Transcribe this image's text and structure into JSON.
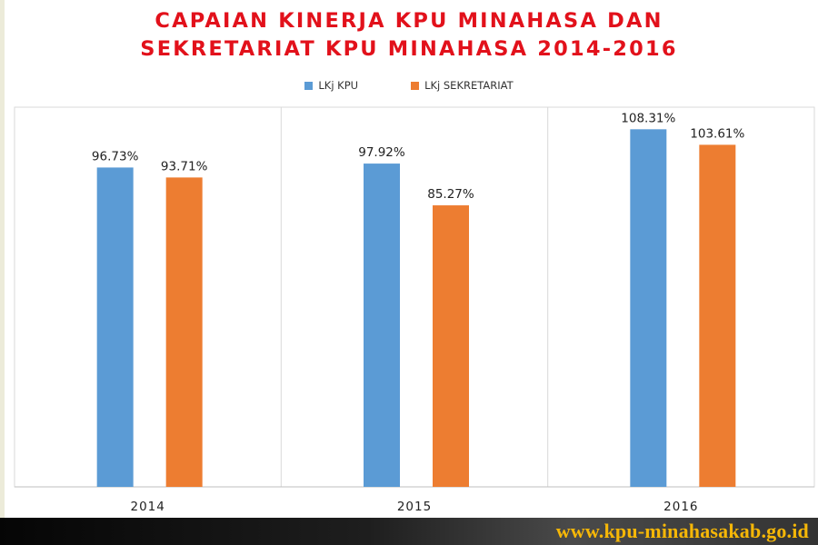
{
  "title_lines": [
    "CAPAIAN KINERJA KPU MINAHASA DAN",
    "SEKRETARIAT KPU MINAHASA 2014-2016"
  ],
  "footer_url": "www.kpu-minahasakab.go.id",
  "colors": {
    "series1": "#5b9bd5",
    "series2": "#ed7d31",
    "title": "#e2111b",
    "footer_text": "#f6b707"
  },
  "chart_data": {
    "type": "bar",
    "title": "CAPAIAN KINERJA KPU MINAHASA DAN SEKRETARIAT KPU MINAHASA 2014-2016",
    "categories": [
      "2014",
      "2015",
      "2016"
    ],
    "series": [
      {
        "name": "LKj KPU",
        "values": [
          96.73,
          97.92,
          108.31
        ],
        "labels": [
          "96.73%",
          "97.92%",
          "108.31%"
        ]
      },
      {
        "name": "LKj SEKRETARIAT",
        "values": [
          93.71,
          85.27,
          103.61
        ],
        "labels": [
          "93.71%",
          "85.27%",
          "103.61%"
        ]
      }
    ],
    "ylim": [
      0,
      115
    ],
    "legend": "top",
    "grid": false
  }
}
